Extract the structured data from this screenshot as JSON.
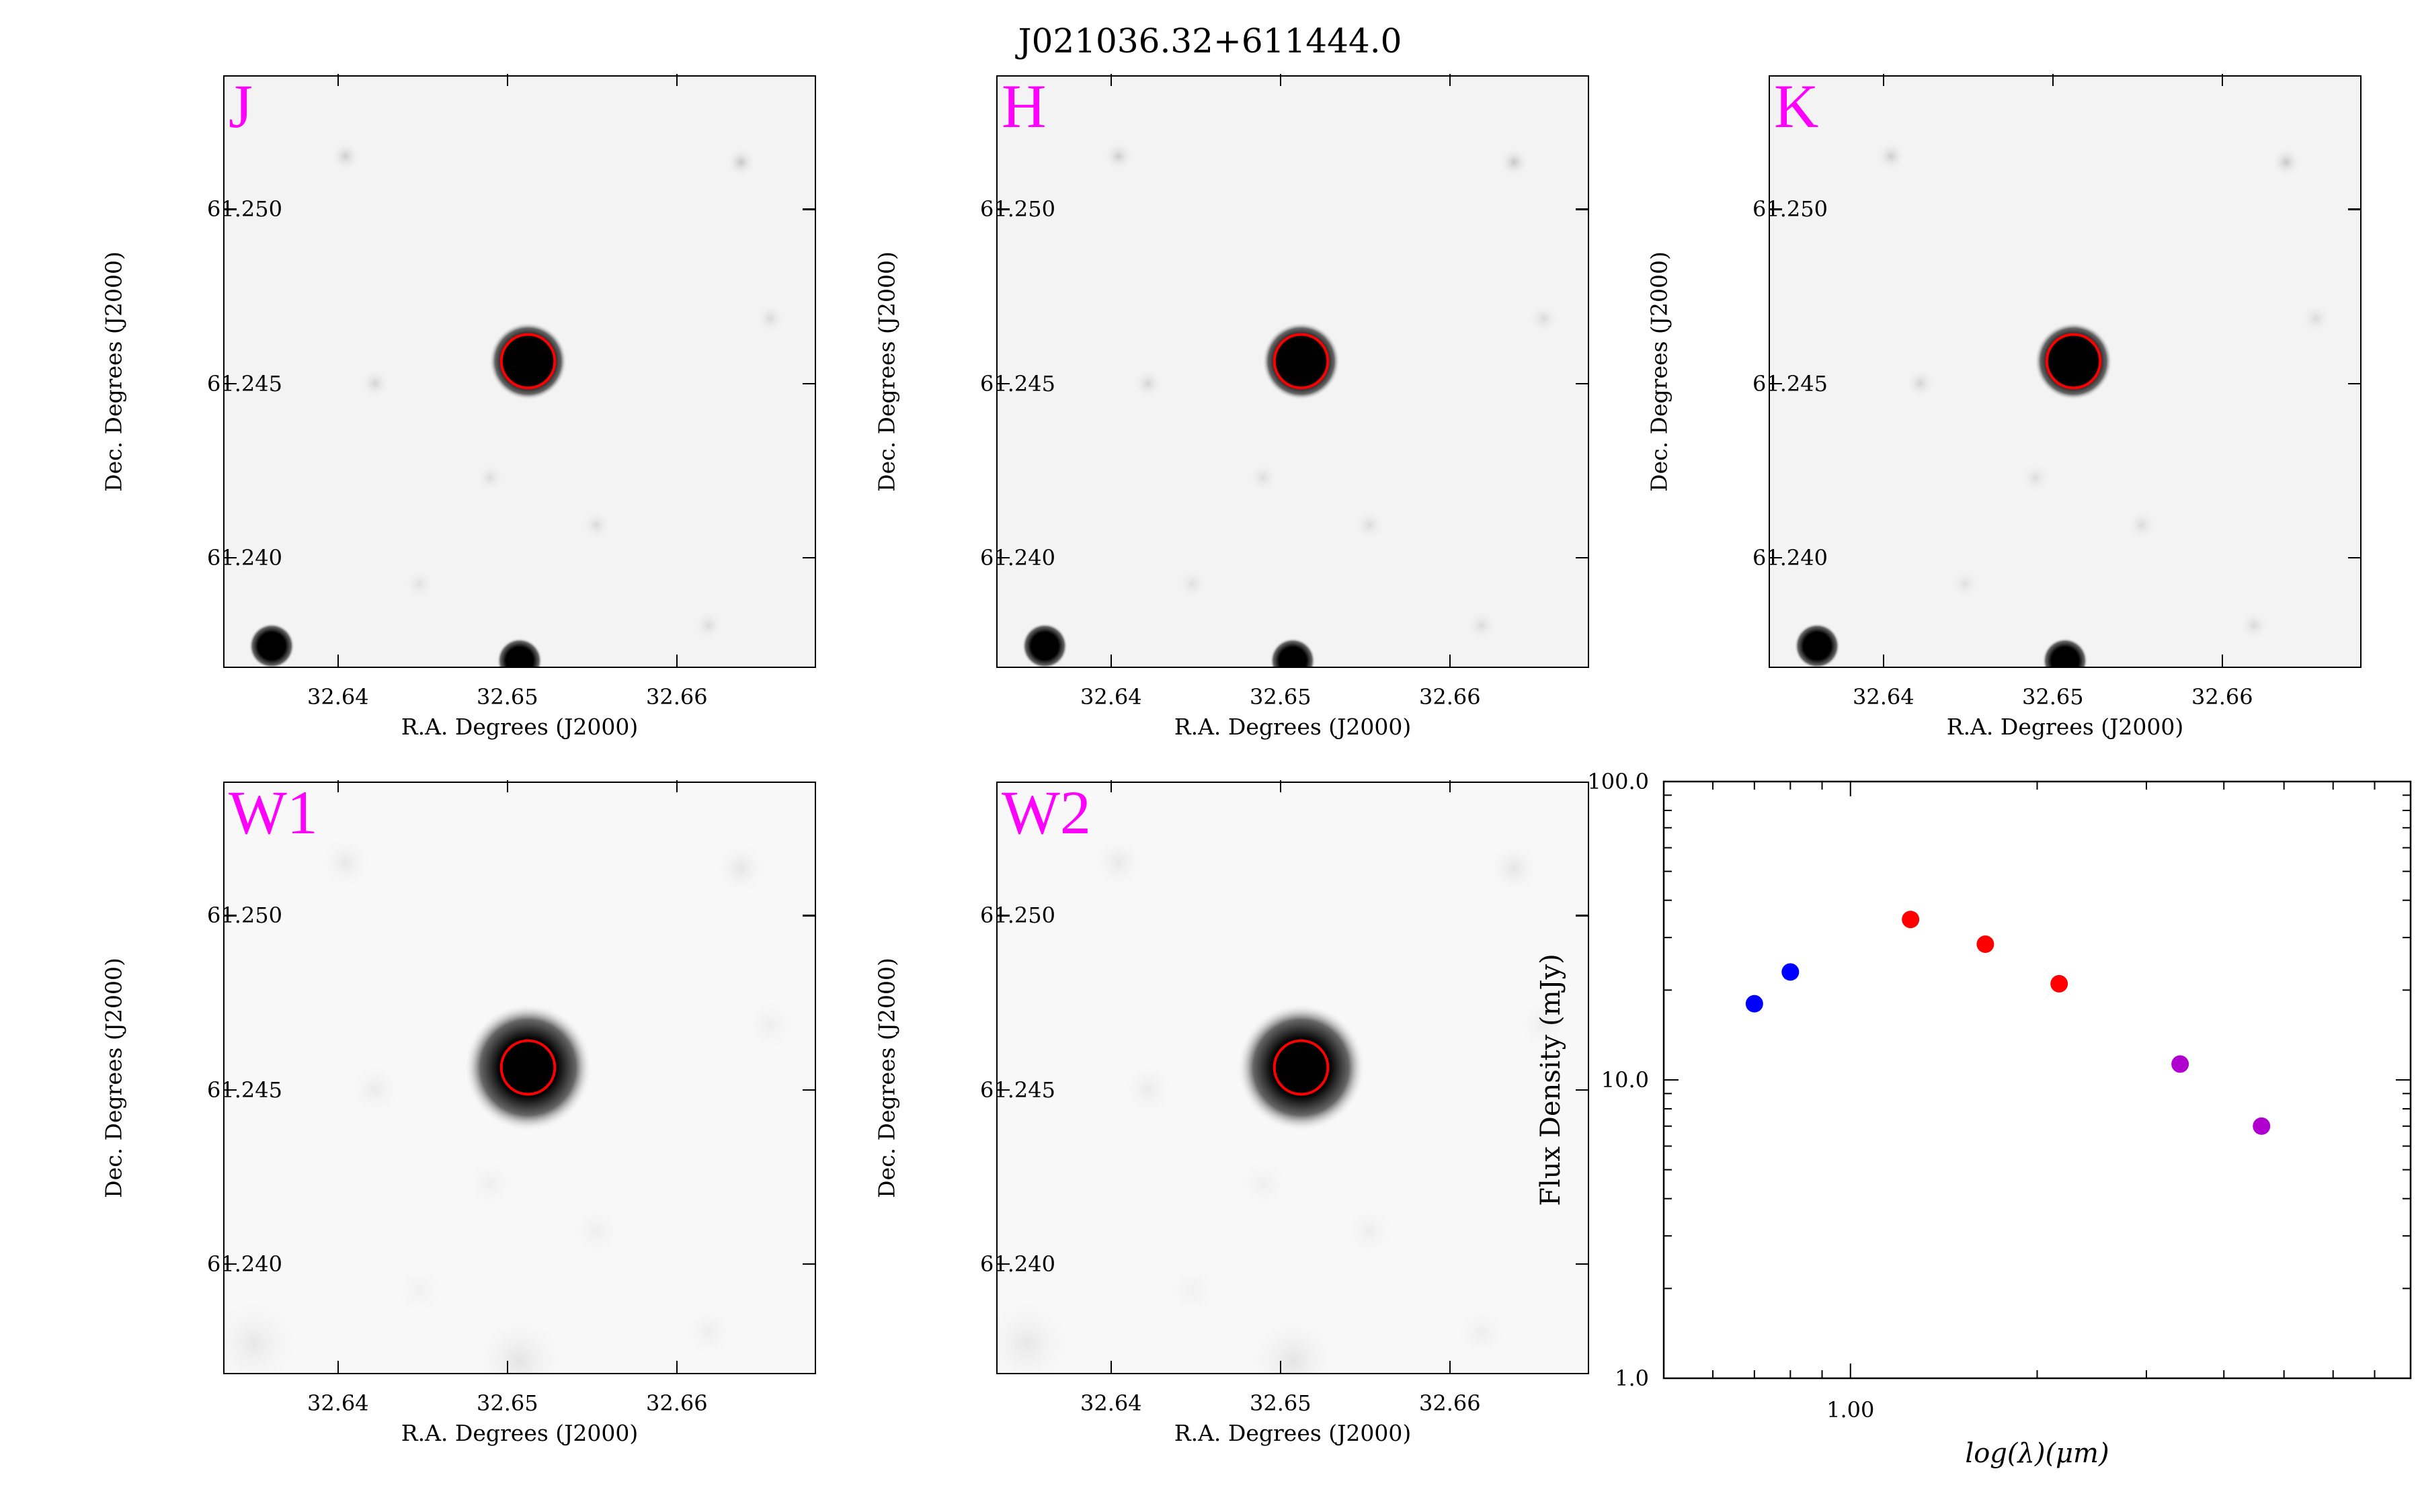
{
  "title": "J021036.32+611444.0",
  "images": {
    "xlabel": "R.A. Degrees (J2000)",
    "ylabel": "Dec. Degrees (J2000)",
    "xticks": [
      "32.64",
      "32.65",
      "32.66"
    ],
    "yticks": [
      "61.250",
      "61.245",
      "61.240"
    ],
    "xtick_values": [
      32.64,
      32.65,
      32.66
    ],
    "ytick_values": [
      61.25,
      61.245,
      61.24
    ],
    "xlim": [
      32.6333,
      32.6683
    ],
    "ylim": [
      61.2368,
      61.2538
    ],
    "bands": [
      "J",
      "H",
      "K",
      "W1",
      "W2"
    ],
    "target": {
      "ra": 32.6513,
      "dec": 61.2456
    },
    "marker_color": "#ff0000",
    "label_color": "#ff00ff"
  },
  "chart_data": {
    "type": "scatter",
    "xlabel": "log(λ)(μm)",
    "ylabel": "Flux Density (mJy)",
    "xscale": "log",
    "yscale": "log",
    "xlim": [
      0.5,
      8.0
    ],
    "ylim": [
      1.0,
      100.0
    ],
    "xticks": [
      "1.00"
    ],
    "yticks": [
      "100.0",
      "10.0",
      "1.0"
    ],
    "series": [
      {
        "color": "#0000ff",
        "x": [
          0.7,
          0.8
        ],
        "y": [
          18.0,
          23.0
        ]
      },
      {
        "color": "#ff0000",
        "x": [
          1.25,
          1.65,
          2.17
        ],
        "y": [
          34.5,
          28.5,
          21.0
        ]
      },
      {
        "color": "#b000d0",
        "x": [
          3.4,
          4.6
        ],
        "y": [
          11.3,
          7.0
        ]
      }
    ]
  }
}
